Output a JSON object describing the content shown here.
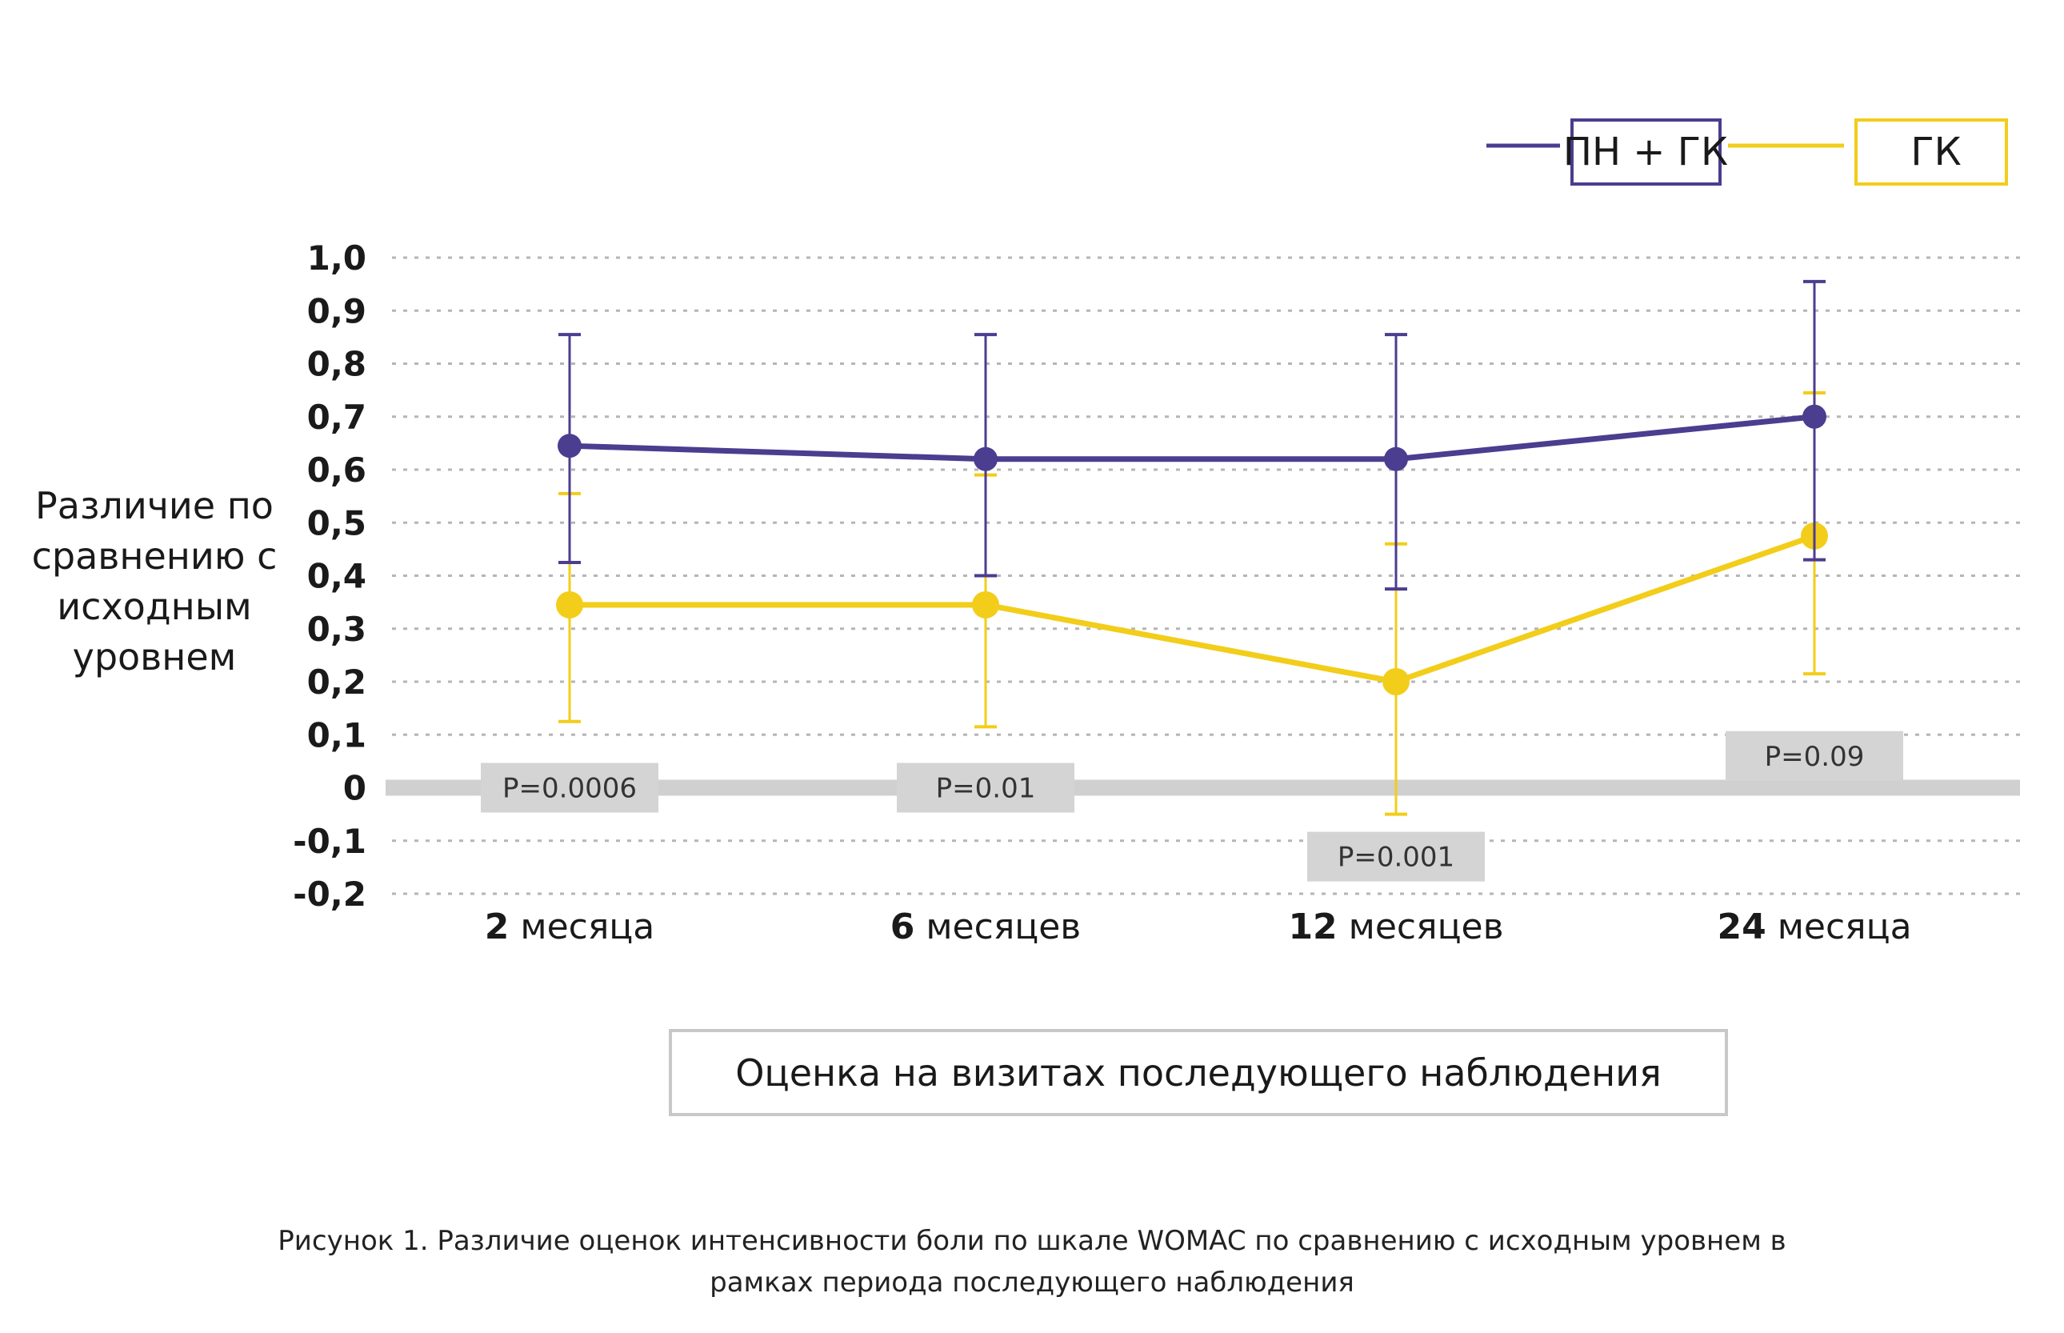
{
  "chart_data": {
    "type": "line",
    "categories": [
      "2 месяца",
      "6 месяцев",
      "12 месяцев",
      "24 месяца"
    ],
    "ylabel": "Различие по сравнению с исходным уровнем",
    "ylabel_lines": [
      "Различие по",
      "сравнению с",
      "исходным",
      "уровнем"
    ],
    "xlabel": "Оценка на визитах последующего наблюдения",
    "ylim": [
      -0.2,
      1.0
    ],
    "yticks": [
      1.0,
      0.9,
      0.8,
      0.7,
      0.6,
      0.5,
      0.4,
      0.3,
      0.2,
      0.1,
      0,
      -0.1,
      -0.2
    ],
    "ytick_labels": [
      "1,0",
      "0,9",
      "0,8",
      "0,7",
      "0,6",
      "0,5",
      "0,4",
      "0,3",
      "0,2",
      "0,1",
      "0",
      "-0,1",
      "-0,2"
    ],
    "grid": true,
    "legend_position": "top-right",
    "series": [
      {
        "name": "ПН + ГК",
        "color": "#4b3d8f",
        "values": [
          0.645,
          0.62,
          0.62,
          0.7
        ],
        "error_low": [
          0.425,
          0.4,
          0.375,
          0.43
        ],
        "error_high": [
          0.855,
          0.855,
          0.855,
          0.955
        ]
      },
      {
        "name": "ГК",
        "color": "#f2cd1a",
        "values": [
          0.345,
          0.345,
          0.2,
          0.475
        ],
        "error_low": [
          0.125,
          0.115,
          -0.05,
          0.215
        ],
        "error_high": [
          0.555,
          0.59,
          0.46,
          0.745
        ]
      }
    ],
    "p_values": [
      {
        "label": "P=0.0006",
        "category": "2 месяца",
        "y": 0
      },
      {
        "label": "P=0.01",
        "category": "6 месяцев",
        "y": 0
      },
      {
        "label": "P=0.001",
        "category": "12 месяцев",
        "y": -0.13
      },
      {
        "label": "P=0.09",
        "category": "24 месяца",
        "y": 0.06
      }
    ]
  },
  "caption": {
    "line1": "Рисунок 1. Различие оценок интенсивности боли по шкале WOMAC по сравнению с исходным уровнем в",
    "line2": "рамках периода последующего наблюдения"
  },
  "colors": {
    "grid": "#b5b5b5",
    "zero_band": "#d0d0d0",
    "p_box": "#d4d4d4",
    "xlabel_box_border": "#c8c8c8"
  }
}
